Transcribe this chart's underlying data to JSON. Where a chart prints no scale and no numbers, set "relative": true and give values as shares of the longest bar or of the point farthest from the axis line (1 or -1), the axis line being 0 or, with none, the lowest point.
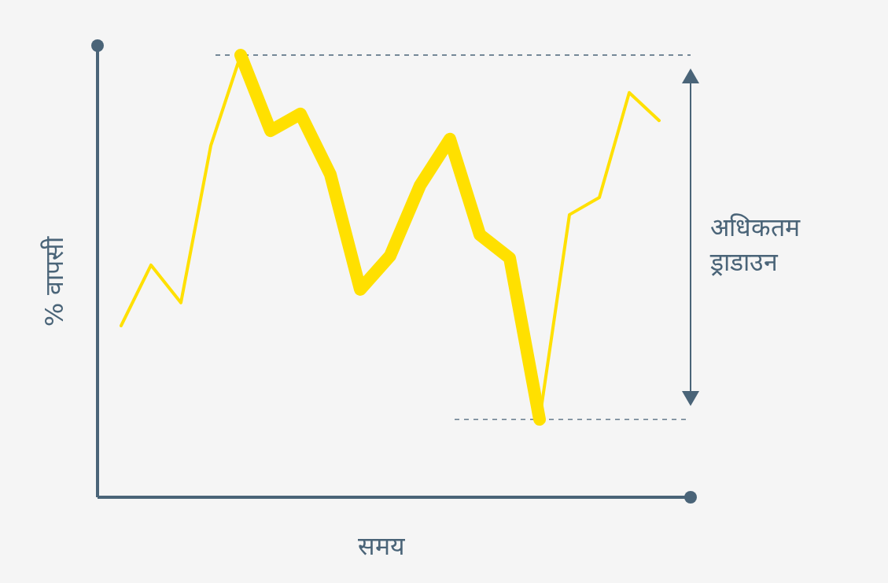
{
  "chart_data": {
    "type": "line",
    "relative": true,
    "xlabel": "समय",
    "ylabel": "% वापसी",
    "categories": [
      null,
      null,
      null,
      null,
      null,
      null,
      null,
      null,
      null,
      null,
      null,
      null,
      null,
      null,
      null,
      null,
      null,
      null,
      null
    ],
    "series": [
      {
        "color": "#ffe000",
        "values": [
          0.388,
          0.525,
          0.44,
          0.795,
          1,
          0.829,
          0.867,
          0.73,
          0.47,
          0.546,
          0.705,
          0.81,
          0.594,
          0.541,
          0.176,
          0.639,
          0.678,
          0.915,
          0.852
        ]
      },
      {
        "color": "#ffe000",
        "values": [
          null,
          null,
          null,
          null,
          1,
          0.829,
          0.867,
          0.73,
          0.47,
          0.546,
          0.705,
          0.81,
          0.594,
          0.541,
          0.176,
          null,
          null,
          null,
          null
        ]
      }
    ],
    "ref_lines": [
      {
        "axis": "y",
        "value": 1,
        "color": "#4a6478",
        "line_style": "dashed"
      },
      {
        "axis": "y",
        "value": 0.176,
        "color": "#4a6478",
        "line_style": "dashed"
      }
    ],
    "annotations": [
      "अधिकतम ड्राडाउन"
    ],
    "marker": "none",
    "line_style": "solid"
  }
}
